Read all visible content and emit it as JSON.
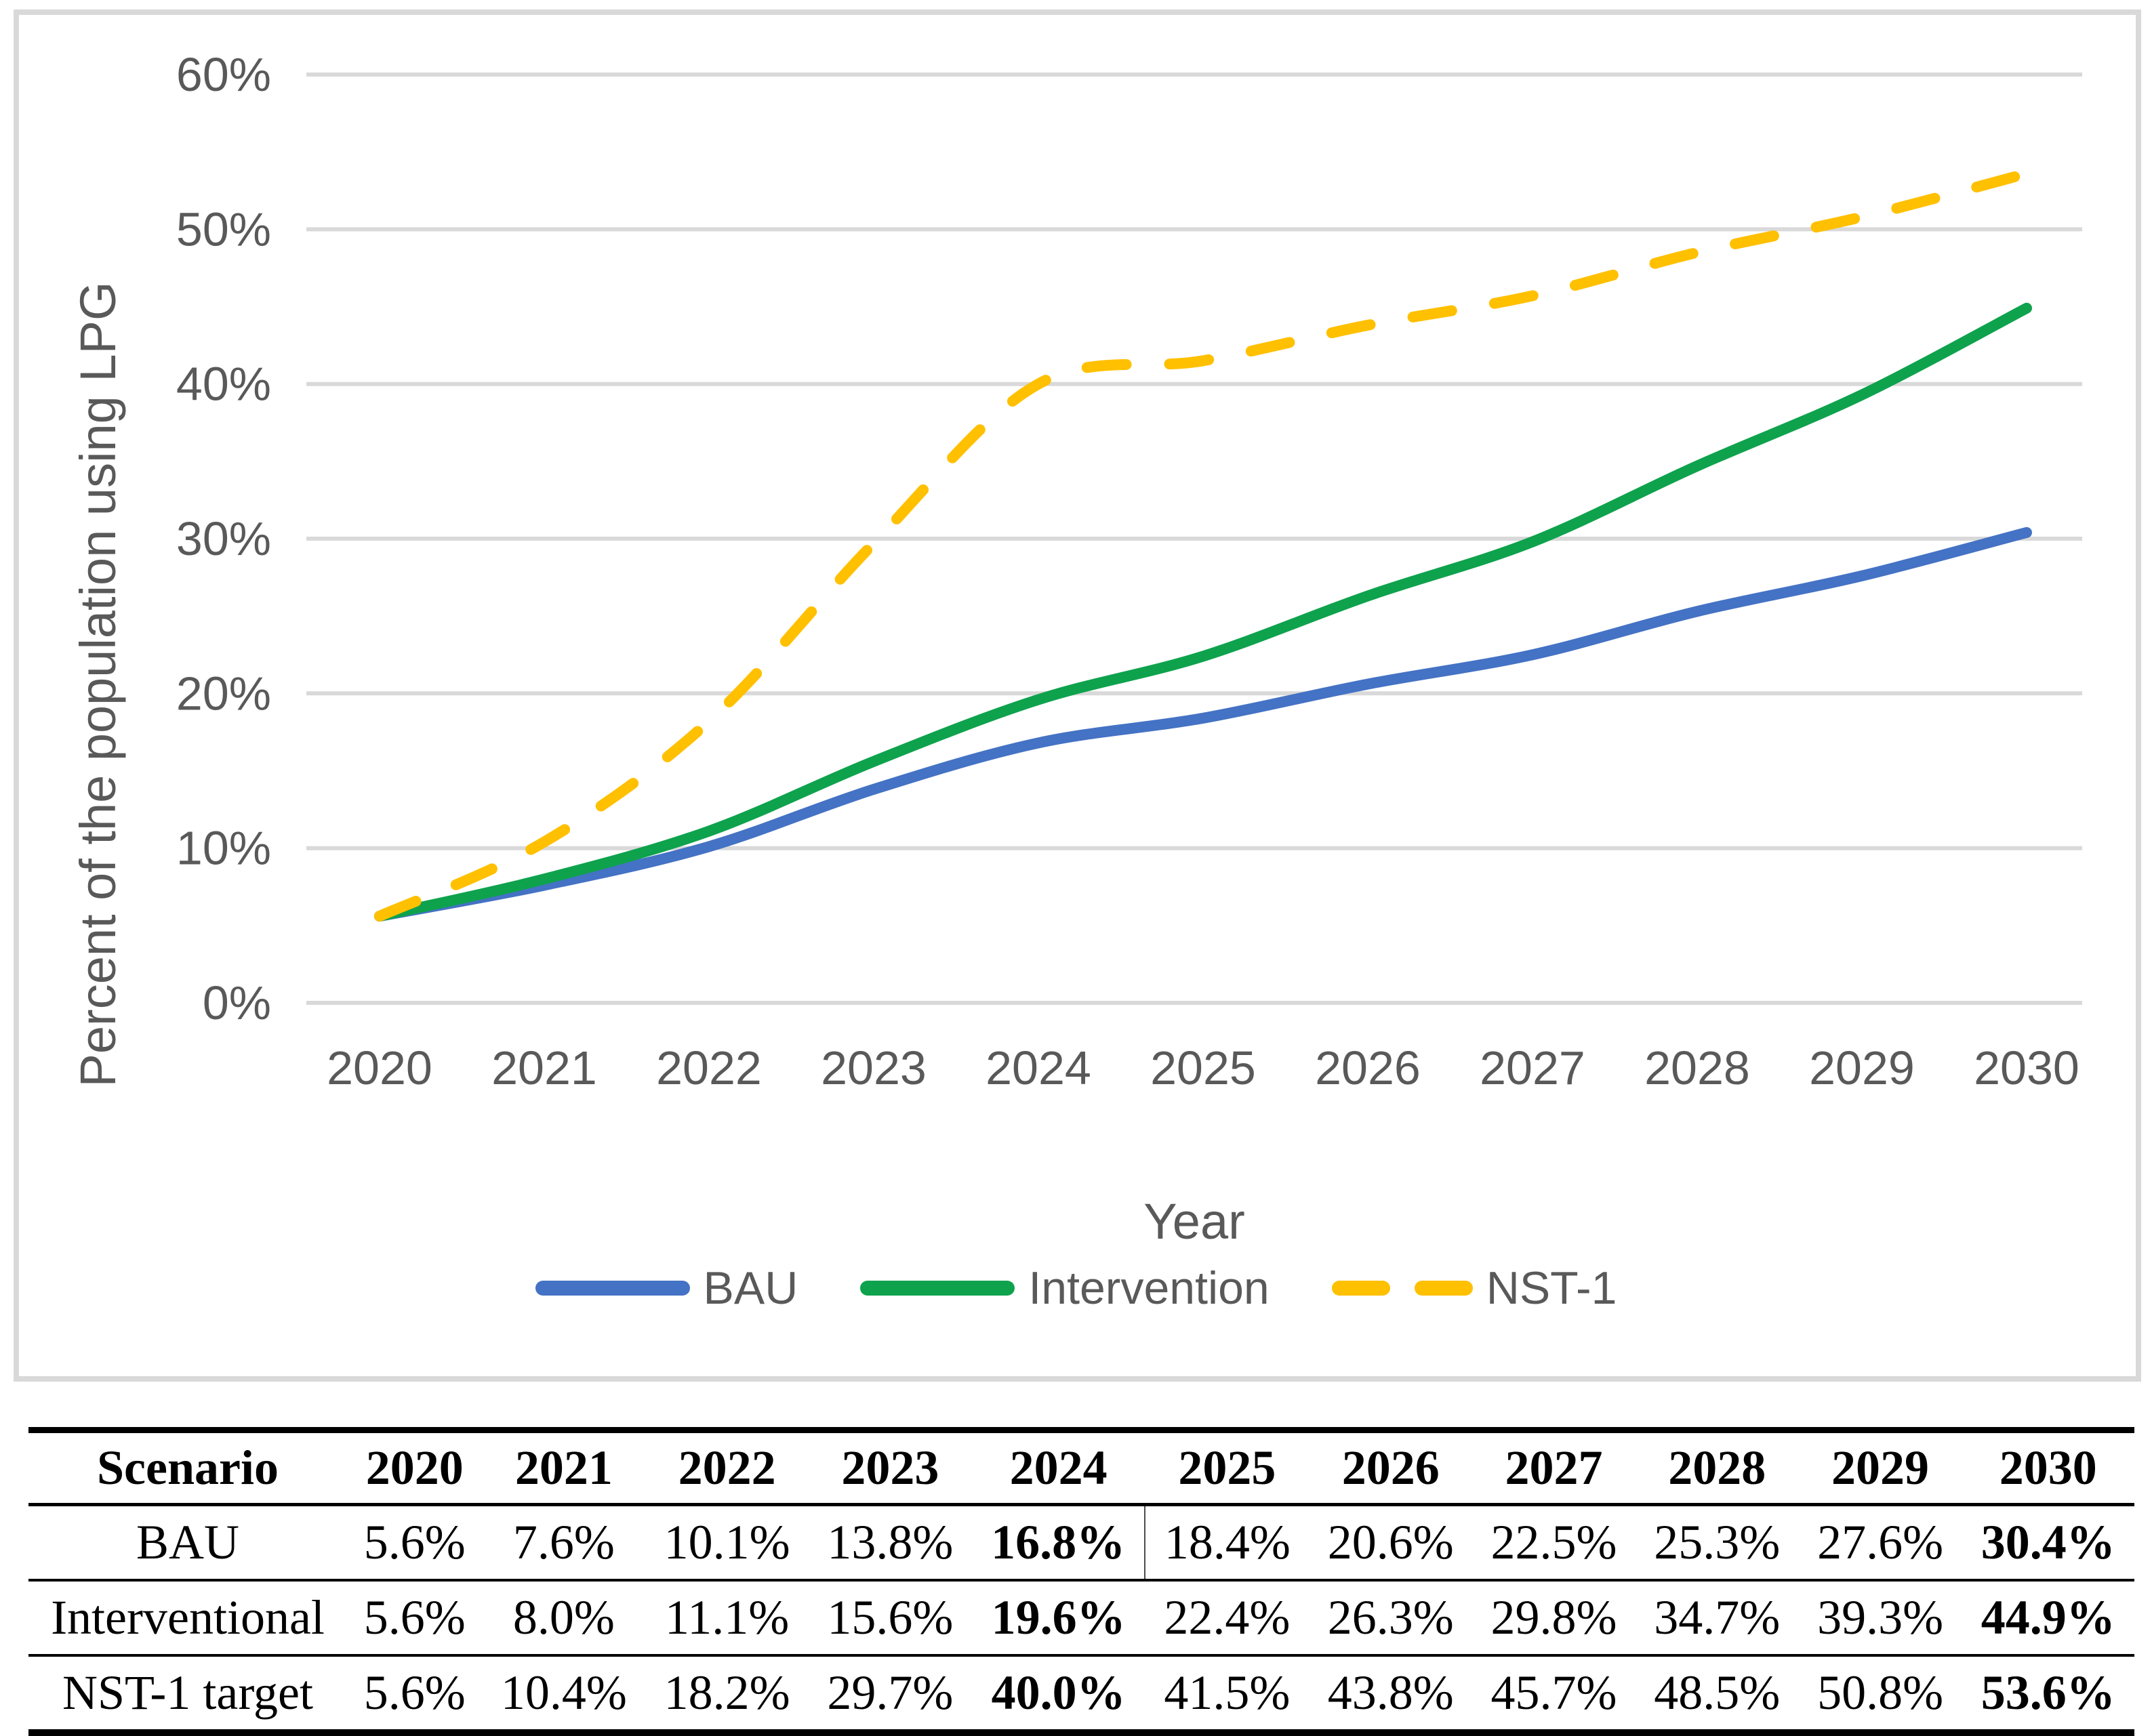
{
  "chart_data": {
    "type": "line",
    "title": "",
    "xlabel": "Year",
    "ylabel": "Percent of the population using LPG",
    "x_labels": [
      "2020",
      "2021",
      "2022",
      "2023",
      "2024",
      "2025",
      "2026",
      "2027",
      "2028",
      "2029",
      "2030"
    ],
    "y_tick_labels": [
      "0%",
      "10%",
      "20%",
      "30%",
      "40%",
      "50%",
      "60%"
    ],
    "ylim": [
      0,
      60
    ],
    "grid": "horizontal",
    "legend_position": "bottom",
    "series": [
      {
        "name": "BAU",
        "color": "#4472C4",
        "line_style": "solid",
        "values": [
          5.6,
          7.6,
          10.1,
          13.8,
          16.8,
          18.4,
          20.6,
          22.5,
          25.3,
          27.6,
          30.4
        ]
      },
      {
        "name": "Intervention",
        "color": "#0EA24D",
        "line_style": "solid",
        "values": [
          5.6,
          8.0,
          11.1,
          15.6,
          19.6,
          22.4,
          26.3,
          29.8,
          34.7,
          39.3,
          44.9
        ]
      },
      {
        "name": "NST-1",
        "color": "#FFC000",
        "line_style": "dashed",
        "values": [
          5.6,
          10.4,
          18.2,
          29.7,
          40.0,
          41.5,
          43.8,
          45.7,
          48.5,
          50.8,
          53.6
        ]
      }
    ]
  },
  "colors": {
    "gridline": "#D9D9D9",
    "figure_border": "#D9D9D9",
    "chart_text": "#595959",
    "table_text": "#000000"
  },
  "table": {
    "columns": [
      "Scenario",
      "2020",
      "2021",
      "2022",
      "2023",
      "2024",
      "2025",
      "2026",
      "2027",
      "2028",
      "2029",
      "2030"
    ],
    "bold_value_columns": [
      "2024",
      "2030"
    ],
    "rows": [
      {
        "label": "BAU",
        "values": [
          "5.6%",
          "7.6%",
          "10.1%",
          "13.8%",
          "16.8%",
          "18.4%",
          "20.6%",
          "22.5%",
          "25.3%",
          "27.6%",
          "30.4%"
        ]
      },
      {
        "label": "Interventional",
        "values": [
          "5.6%",
          "8.0%",
          "11.1%",
          "15.6%",
          "19.6%",
          "22.4%",
          "26.3%",
          "29.8%",
          "34.7%",
          "39.3%",
          "44.9%"
        ]
      },
      {
        "label": "NST-1 target",
        "values": [
          "5.6%",
          "10.4%",
          "18.2%",
          "29.7%",
          "40.0%",
          "41.5%",
          "43.8%",
          "45.7%",
          "48.5%",
          "50.8%",
          "53.6%"
        ]
      }
    ]
  }
}
